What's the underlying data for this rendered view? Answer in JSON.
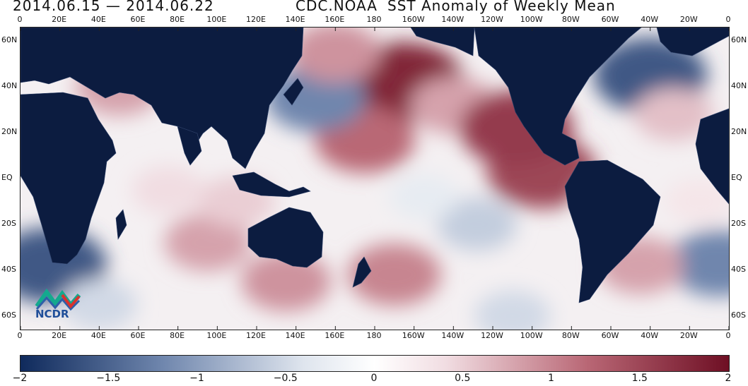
{
  "header": {
    "date_range": "2014.06.15 — 2014.06.22",
    "source": "CDC.NOAA",
    "title": "SST Anomaly of Weekly Mean"
  },
  "map": {
    "lon_labels": [
      "0",
      "20E",
      "40E",
      "60E",
      "80E",
      "100E",
      "120E",
      "140E",
      "160E",
      "180",
      "160W",
      "140W",
      "120W",
      "100W",
      "80W",
      "60W",
      "40W",
      "20W",
      "0"
    ],
    "lat_labels": [
      "60N",
      "40N",
      "20N",
      "EQ",
      "20S",
      "40S",
      "60S"
    ],
    "lon_range": [
      0,
      360
    ],
    "lat_range": [
      66,
      -66
    ],
    "land_color": "#0c1c40",
    "anomalies": [
      {
        "lon": 195,
        "lat": 42,
        "value": 1.8
      },
      {
        "lon": 175,
        "lat": 17,
        "value": 1.2
      },
      {
        "lon": 265,
        "lat": 3,
        "value": 1.5
      },
      {
        "lon": 220,
        "lat": 32,
        "value": 0.8
      },
      {
        "lon": 252,
        "lat": 22,
        "value": 1.6
      },
      {
        "lon": 150,
        "lat": 35,
        "value": -1.2
      },
      {
        "lon": 320,
        "lat": 45,
        "value": -1.6
      },
      {
        "lon": 15,
        "lat": -38,
        "value": -1.6
      },
      {
        "lon": 190,
        "lat": -42,
        "value": 1.0
      },
      {
        "lon": 95,
        "lat": -28,
        "value": 0.8
      },
      {
        "lon": 355,
        "lat": -37,
        "value": -1.2
      },
      {
        "lon": 135,
        "lat": -45,
        "value": 0.9
      },
      {
        "lon": 315,
        "lat": -38,
        "value": 0.8
      },
      {
        "lon": 75,
        "lat": -5,
        "value": 0.4
      },
      {
        "lon": 232,
        "lat": -20,
        "value": -0.6
      },
      {
        "lon": 40,
        "lat": -55,
        "value": -0.5
      },
      {
        "lon": 250,
        "lat": -60,
        "value": -0.5
      },
      {
        "lon": 50,
        "lat": 40,
        "value": 0.8
      },
      {
        "lon": 332,
        "lat": 28,
        "value": 0.6
      },
      {
        "lon": 160,
        "lat": 55,
        "value": 0.9
      },
      {
        "lon": 300,
        "lat": -10,
        "value": 0.3
      },
      {
        "lon": 110,
        "lat": -10,
        "value": 0.5
      },
      {
        "lon": 205,
        "lat": -8,
        "value": -0.3
      },
      {
        "lon": 345,
        "lat": -10,
        "value": 0.3
      }
    ]
  },
  "colorbar": {
    "labels": [
      "-2",
      "-1.5",
      "-1",
      "-0.5",
      "0",
      "0.5",
      "1",
      "1.5",
      "2"
    ],
    "min": -2,
    "max": 2
  },
  "logo": {
    "text": "NCDR"
  }
}
